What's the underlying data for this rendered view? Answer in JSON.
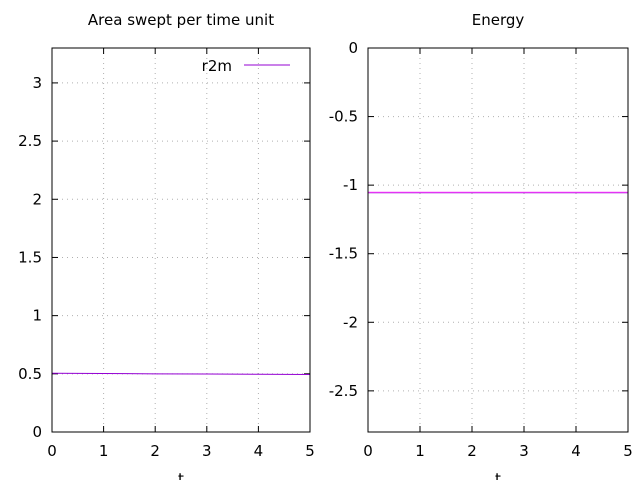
{
  "chart_data": [
    {
      "type": "line",
      "title": "Area swept per time unit",
      "xlabel": "t",
      "ylabel": "",
      "xlim": [
        0,
        5
      ],
      "ylim": [
        0,
        3.3
      ],
      "xticks": [
        0,
        1,
        2,
        3,
        4,
        5
      ],
      "yticks": [
        0,
        0.5,
        1,
        1.5,
        2,
        2.5,
        3
      ],
      "xtick_labels": [
        "0",
        "1",
        "2",
        "3",
        "4",
        "5"
      ],
      "ytick_labels": [
        "0",
        "0.5",
        "1",
        "1.5",
        "2",
        "2.5",
        "3"
      ],
      "grid": true,
      "legend_position": "top-right",
      "series": [
        {
          "name": "r2m",
          "color": "#9400d3",
          "x": [
            0,
            1,
            2,
            3,
            4,
            5
          ],
          "y": [
            0.505,
            0.503,
            0.5,
            0.498,
            0.496,
            0.494
          ]
        }
      ]
    },
    {
      "type": "line",
      "title": "Energy",
      "xlabel": "t",
      "ylabel": "",
      "xlim": [
        0,
        5
      ],
      "ylim": [
        -2.8,
        0
      ],
      "xticks": [
        0,
        1,
        2,
        3,
        4,
        5
      ],
      "yticks": [
        0,
        -0.5,
        -1,
        -1.5,
        -2,
        -2.5
      ],
      "xtick_labels": [
        "0",
        "1",
        "2",
        "3",
        "4",
        "5"
      ],
      "ytick_labels": [
        "0",
        "-0.5",
        "-1",
        "-1.5",
        "-2",
        "-2.5"
      ],
      "grid": true,
      "series": [
        {
          "name": "",
          "color": "#9400d3",
          "x": [
            0,
            1,
            2,
            3,
            4,
            5
          ],
          "y": [
            -1.055,
            -1.055,
            -1.055,
            -1.055,
            -1.055,
            -1.055
          ]
        },
        {
          "name": "",
          "color": "#ff44ff",
          "x": [
            0,
            1,
            2,
            3,
            4,
            5
          ],
          "y": [
            -1.052,
            -1.052,
            -1.052,
            -1.052,
            -1.052,
            -1.052
          ]
        }
      ]
    }
  ]
}
